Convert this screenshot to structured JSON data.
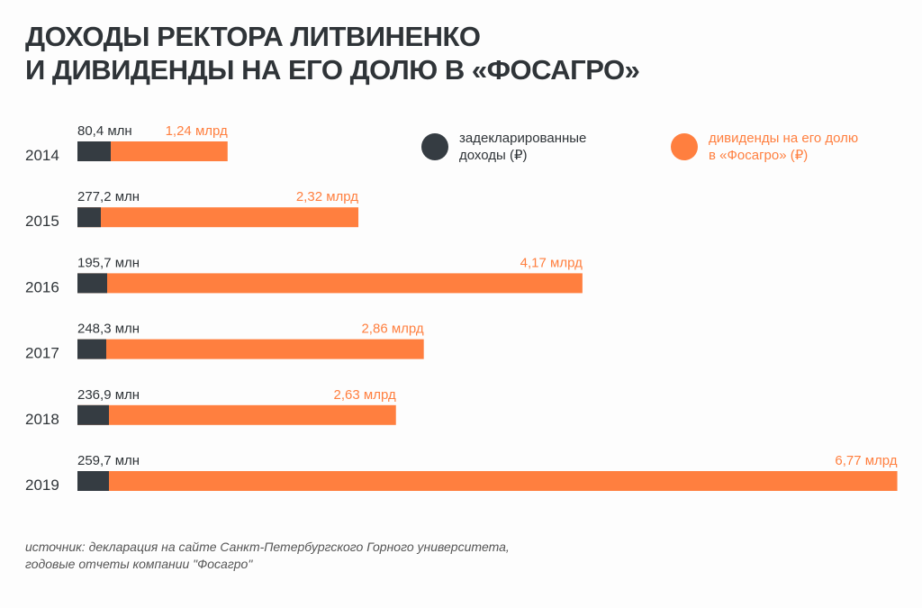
{
  "title_line1": "ДОХОДЫ РЕКТОРА ЛИТВИНЕНКО",
  "title_line2": "И ДИВИДЕНДЫ НА ЕГО ДОЛЮ В «ФОСАГРО»",
  "source_line1": "источник: декларация на сайте Санкт-Петербургского Горного университета,",
  "source_line2": "годовые отчеты компании \"Фосагро\"",
  "colors": {
    "income": "#353c42",
    "dividends": "#ff7f3f",
    "text": "#2f3438"
  },
  "chart_data": {
    "type": "bar",
    "orientation": "horizontal",
    "stacked": "overlay",
    "categories": [
      "2014",
      "2015",
      "2016",
      "2017",
      "2018",
      "2019"
    ],
    "series": [
      {
        "name": "задекларированные доходы (₽)",
        "unit": "млн ₽",
        "values": [
          80.4,
          277.2,
          195.7,
          248.3,
          236.9,
          259.7
        ],
        "labels": [
          "80,4 млн",
          "277,2 млн",
          "195,7 млн",
          "248,3 млн",
          "236,9 млн",
          "259,7 млн"
        ]
      },
      {
        "name": "дивиденды на его долю в «Фосагро» (₽)",
        "unit": "млрд ₽",
        "values": [
          1.24,
          2.32,
          4.17,
          2.86,
          2.63,
          6.77
        ],
        "labels": [
          "1,24 млрд",
          "2,32 млрд",
          "4,17 млрд",
          "2,86 млрд",
          "2,63 млрд",
          "6,77 млрд"
        ]
      }
    ],
    "legend": {
      "position": "top-right",
      "income_line1": "задекларированные",
      "income_line2": "доходы (₽)",
      "dividends_line1": "дивиденды на его долю",
      "dividends_line2": "в «Фосагро» (₽)"
    },
    "grid": false
  }
}
